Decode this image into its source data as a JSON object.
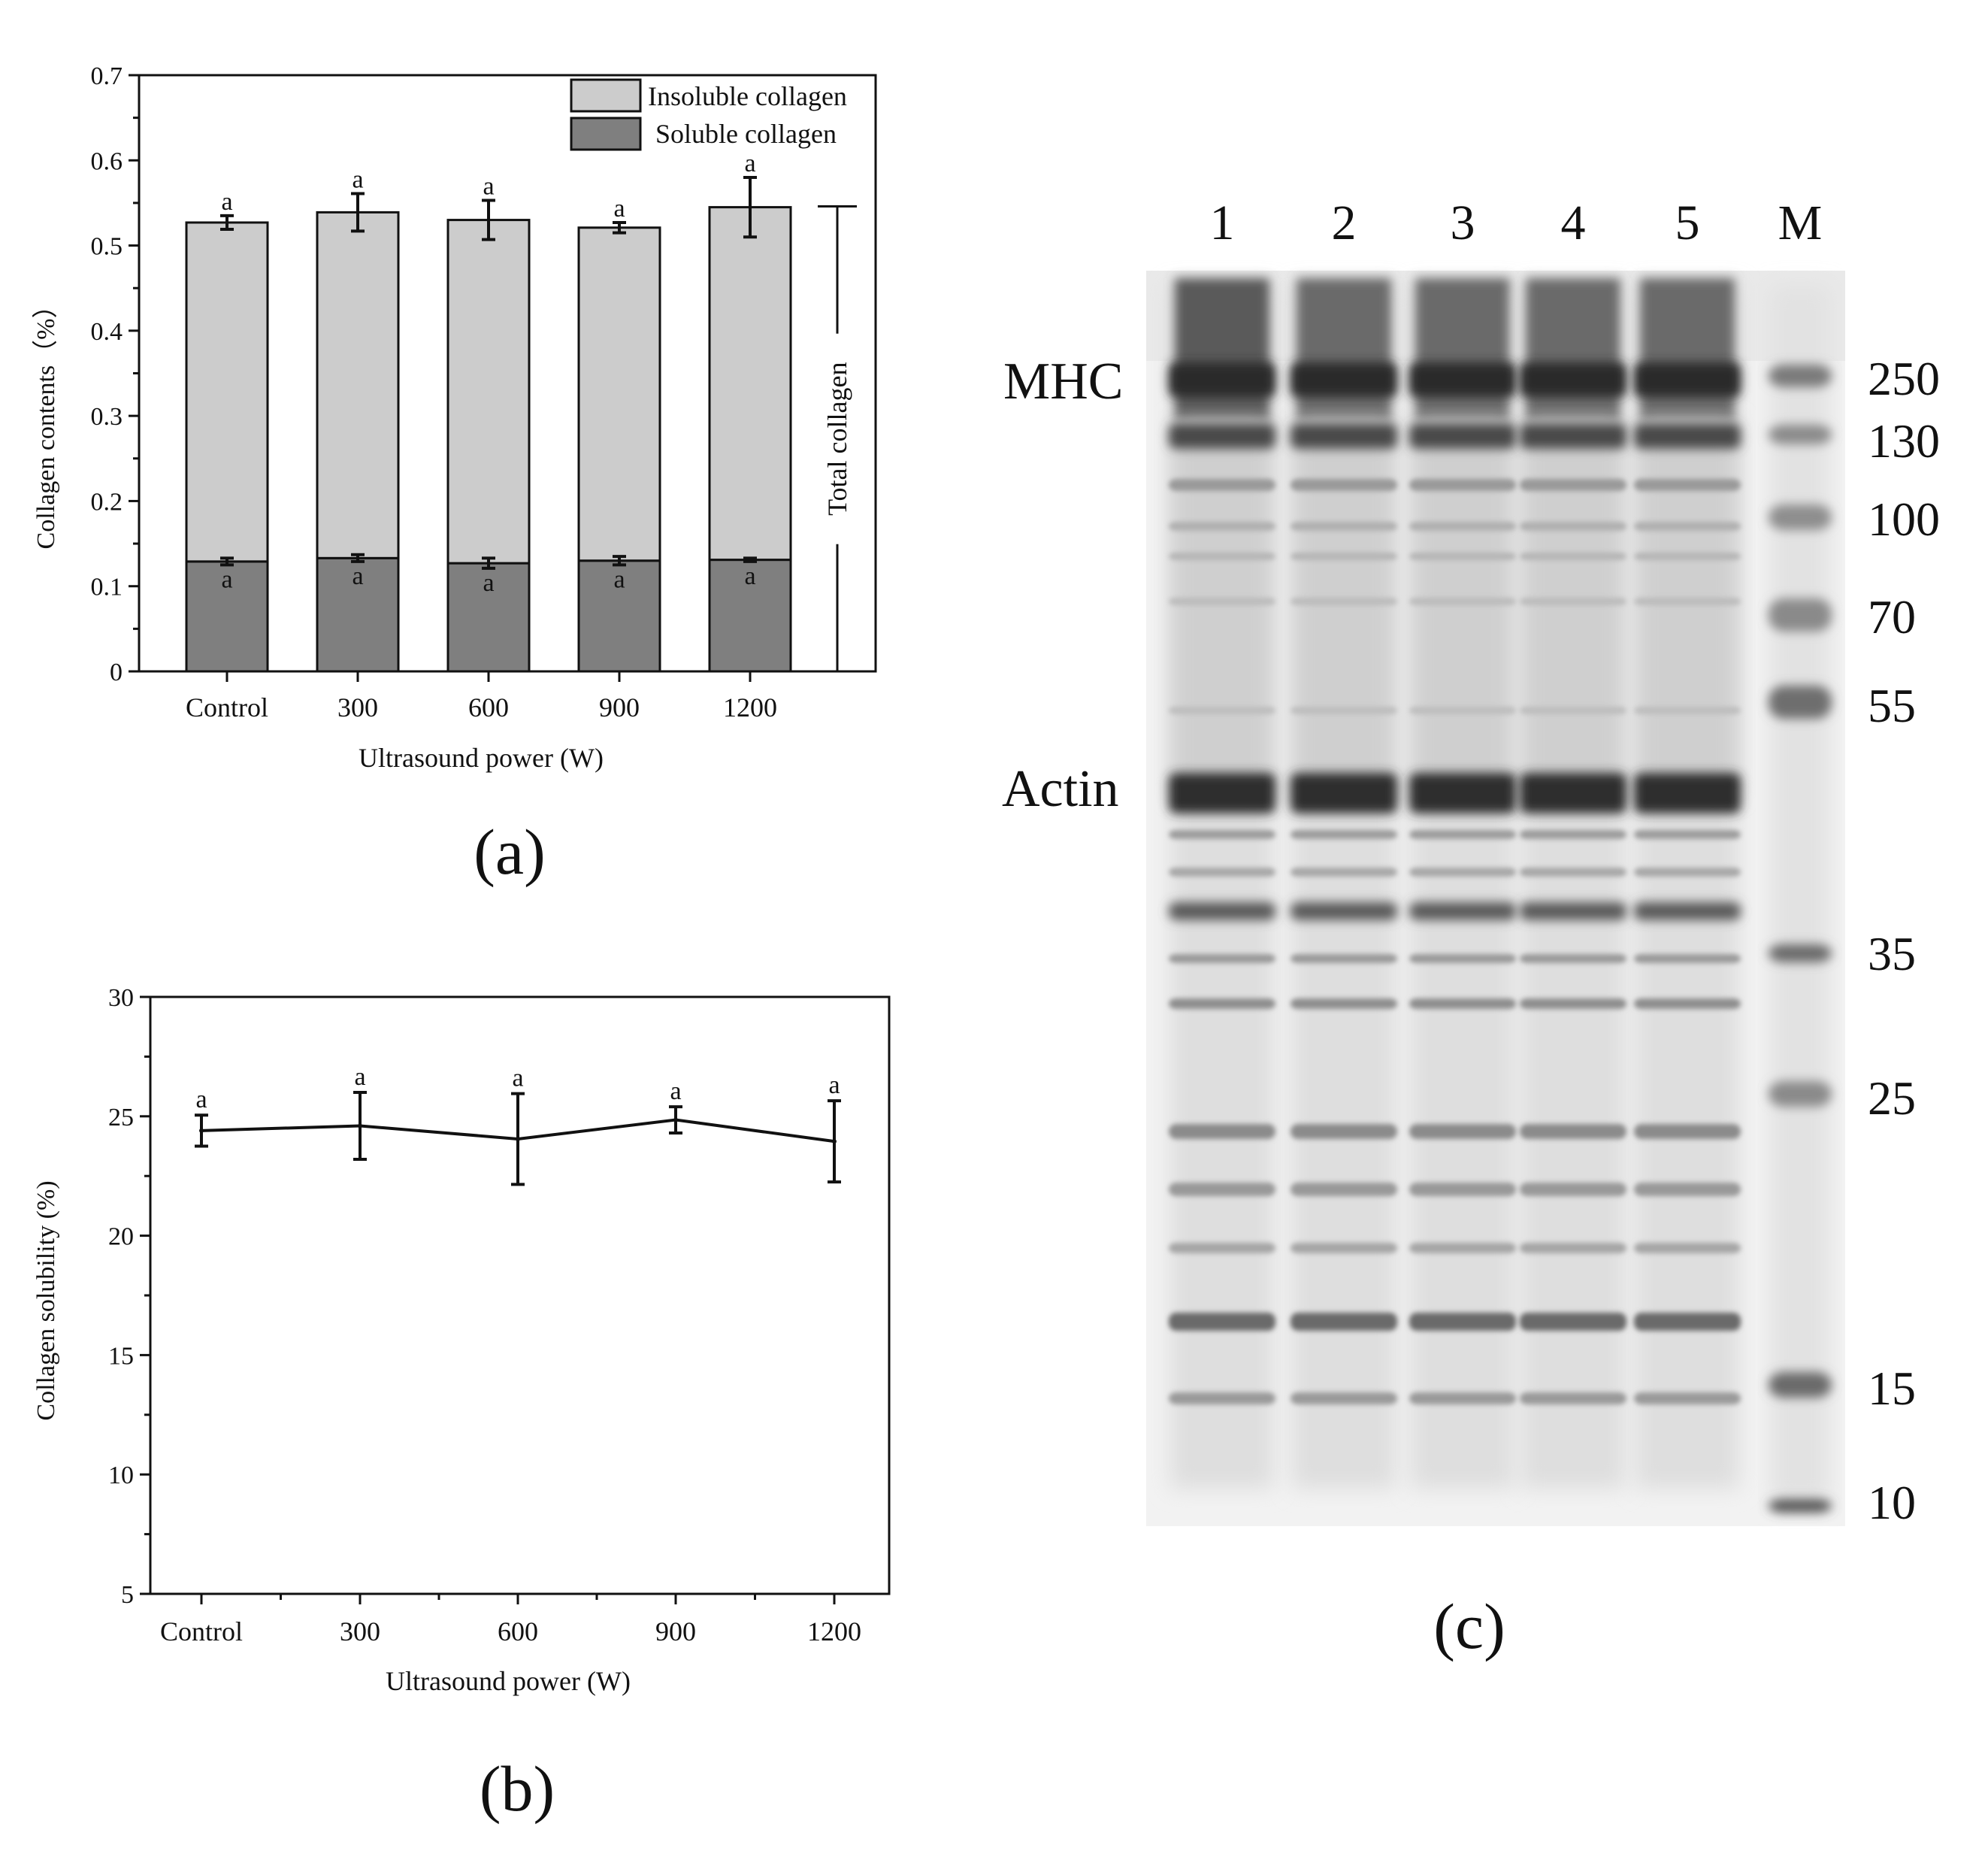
{
  "panel_a": {
    "panel_label": "(a)",
    "ylabel": "Collagen contents（%）",
    "xlabel": "Ultrasound power (W)",
    "total_label": "Total collagen",
    "legend": [
      "Insoluble collagen",
      "Soluble collagen"
    ],
    "colors": {
      "insoluble": "#cccccc",
      "soluble": "#7f7f7f",
      "frame": "#111111"
    }
  },
  "panel_b": {
    "panel_label": "(b)",
    "ylabel": "Collagen solubility (%)",
    "xlabel": "Ultrasound power (W)"
  },
  "panel_c": {
    "panel_label": "(c)",
    "lane_labels": [
      "1",
      "2",
      "3",
      "4",
      "5",
      "M"
    ],
    "band_labels": [
      "MHC",
      "Actin"
    ],
    "marker_kda": [
      "250",
      "130",
      "100",
      "70",
      "55",
      "35",
      "25",
      "15",
      "10"
    ]
  },
  "chart_data": [
    {
      "type": "bar",
      "stacked": true,
      "categories": [
        "Control",
        "300",
        "600",
        "900",
        "1200"
      ],
      "series": [
        {
          "name": "Soluble collagen",
          "values": [
            0.129,
            0.133,
            0.127,
            0.13,
            0.131
          ],
          "errors": [
            0.004,
            0.004,
            0.006,
            0.005,
            0.002
          ],
          "letters": [
            "a",
            "a",
            "a",
            "a",
            "a"
          ]
        },
        {
          "name": "Insoluble collagen",
          "values": [
            0.398,
            0.406,
            0.403,
            0.391,
            0.414
          ],
          "letters": [
            "a",
            "a",
            "a",
            "a",
            "a"
          ]
        }
      ],
      "totals": [
        0.527,
        0.539,
        0.53,
        0.521,
        0.545
      ],
      "total_errors": [
        0.008,
        0.022,
        0.023,
        0.006,
        0.035
      ],
      "xlabel": "Ultrasound power (W)",
      "ylabel": "Collagen contents（%）",
      "ylim": [
        0,
        0.7
      ],
      "yticks": [
        0,
        0.1,
        0.2,
        0.3,
        0.4,
        0.5,
        0.6,
        0.7
      ],
      "ytick_labels": [
        "0",
        "0.1",
        "0.2",
        "0.3",
        "0.4",
        "0.5",
        "0.6",
        "0.7"
      ],
      "legend_position": "top-right",
      "grid": false
    },
    {
      "type": "line",
      "categories": [
        "Control",
        "300",
        "600",
        "900",
        "1200"
      ],
      "series": [
        {
          "values": [
            24.4,
            24.6,
            24.05,
            24.85,
            23.95
          ],
          "errors": [
            0.65,
            1.4,
            1.9,
            0.55,
            1.7
          ],
          "letters": [
            "a",
            "a",
            "a",
            "a",
            "a"
          ]
        }
      ],
      "xlabel": "Ultrasound power (W)",
      "ylabel": "Collagen solubility (%)",
      "ylim": [
        5,
        30
      ],
      "yticks": [
        5,
        10,
        15,
        20,
        25,
        30
      ],
      "grid": false
    }
  ]
}
